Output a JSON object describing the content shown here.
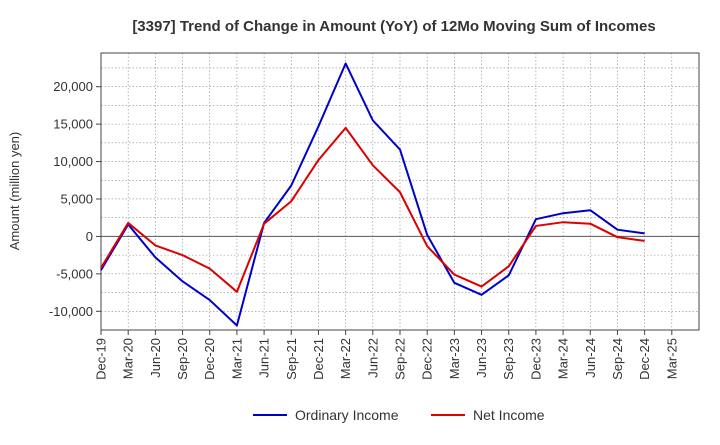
{
  "chart_data": {
    "type": "line",
    "title": "[3397]  Trend of Change in Amount (YoY) of 12Mo Moving Sum of Incomes",
    "xlabel": "",
    "ylabel": "Amount (million yen)",
    "ylim": [
      -12500,
      24500
    ],
    "yticks": [
      -10000,
      -5000,
      0,
      5000,
      10000,
      15000,
      20000
    ],
    "ytick_labels": [
      "-10,000",
      "-5,000",
      "0",
      "5,000",
      "10,000",
      "15,000",
      "20,000"
    ],
    "grid": true,
    "legend_position": "bottom-center",
    "categories": [
      "Dec-19",
      "Mar-20",
      "Jun-20",
      "Sep-20",
      "Dec-20",
      "Mar-21",
      "Jun-21",
      "Sep-21",
      "Dec-21",
      "Mar-22",
      "Jun-22",
      "Sep-22",
      "Dec-22",
      "Mar-23",
      "Jun-23",
      "Sep-23",
      "Dec-23",
      "Mar-24",
      "Jun-24",
      "Sep-24",
      "Dec-24",
      "Mar-25"
    ],
    "series": [
      {
        "name": "Ordinary Income",
        "color": "#0000cc",
        "values": [
          -4500,
          1600,
          -2800,
          -6000,
          -8500,
          -11900,
          1800,
          6800,
          14700,
          23100,
          15500,
          11600,
          200,
          -6200,
          -7800,
          -5200,
          2300,
          3100,
          3500,
          900,
          400,
          null
        ]
      },
      {
        "name": "Net Income",
        "color": "#dd0000",
        "values": [
          -4200,
          1800,
          -1200,
          -2500,
          -4300,
          -7400,
          1700,
          4700,
          10200,
          14500,
          9500,
          5900,
          -1300,
          -5100,
          -6700,
          -4000,
          1400,
          1900,
          1700,
          -100,
          -600,
          null
        ]
      }
    ]
  }
}
